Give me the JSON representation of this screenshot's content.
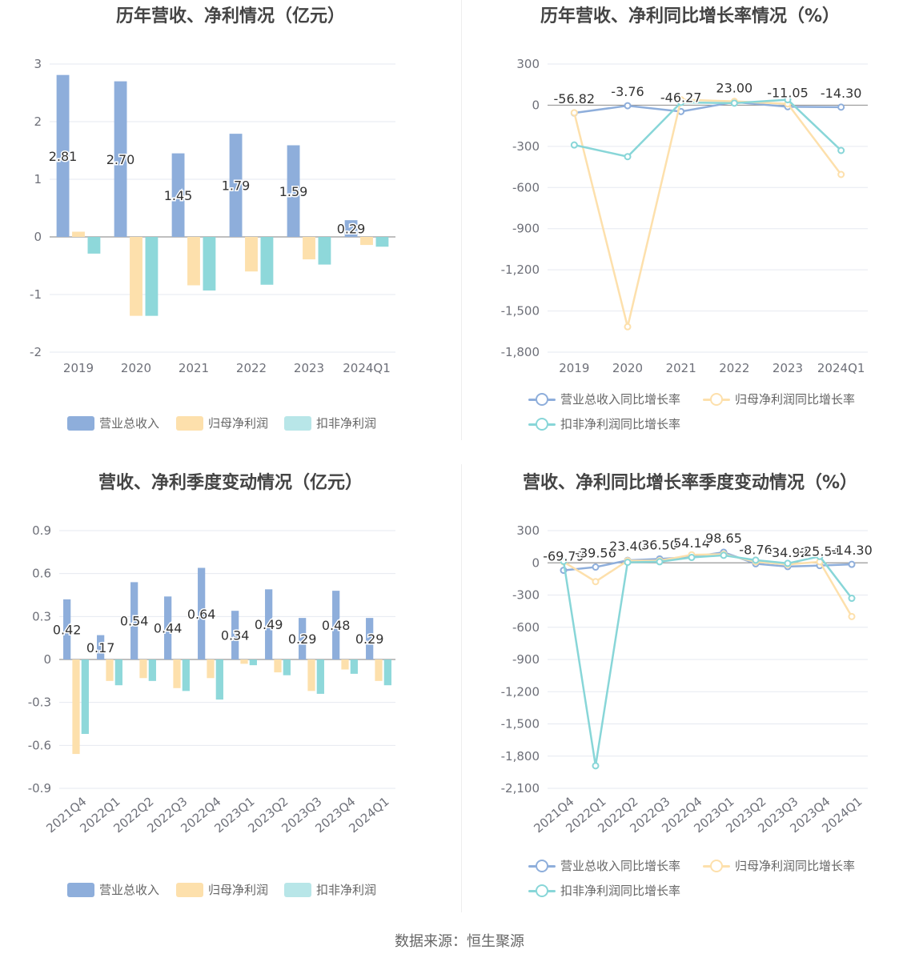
{
  "colors": {
    "revenue": "#8eaedb",
    "parent_profit": "#fde0ac",
    "deducted_profit": "#88d6d8",
    "grid": "#e6e9f0",
    "axis": "#6e7079",
    "zero": "#999999"
  },
  "source": "数据来源：恒生聚源",
  "chart_data": [
    {
      "type": "bar",
      "title": "历年营收、净利情况（亿元）",
      "categories": [
        "2019",
        "2020",
        "2021",
        "2022",
        "2023",
        "2024Q1"
      ],
      "ylim": [
        -2,
        3
      ],
      "yticks": [
        "3",
        "2",
        "1",
        "0",
        "-1",
        "-2"
      ],
      "ytick_values": [
        3,
        2,
        1,
        0,
        -1,
        -2
      ],
      "series": [
        {
          "name": "营业总收入",
          "values": [
            2.81,
            2.7,
            1.45,
            1.79,
            1.59,
            0.29
          ],
          "labels": [
            "2.81",
            "2.70",
            "1.45",
            "1.79",
            "1.59",
            "0.29"
          ]
        },
        {
          "name": "归母净利润",
          "values": [
            0.09,
            -1.37,
            -0.84,
            -0.6,
            -0.39,
            -0.14
          ]
        },
        {
          "name": "扣非净利润",
          "values": [
            -0.29,
            -1.37,
            -0.93,
            -0.83,
            -0.48,
            -0.17
          ]
        }
      ],
      "legend_position": "bottom"
    },
    {
      "type": "line",
      "title": "历年营收、净利同比增长率情况（%）",
      "categories": [
        "2019",
        "2020",
        "2021",
        "2022",
        "2023",
        "2024Q1"
      ],
      "ylim": [
        -1800,
        300
      ],
      "yticks": [
        "300",
        "0",
        "-300",
        "-600",
        "-900",
        "-1,200",
        "-1,500",
        "-1,800"
      ],
      "ytick_values": [
        300,
        0,
        -300,
        -600,
        -900,
        -1200,
        -1500,
        -1800
      ],
      "series": [
        {
          "name": "营业总收入同比增长率",
          "values": [
            -56.82,
            -3.76,
            -46.27,
            23.0,
            -11.05,
            -14.3
          ],
          "labels": [
            "-56.82",
            "-3.76",
            "-46.27",
            "23.00",
            "-11.05",
            "-14.30"
          ]
        },
        {
          "name": "归母净利润同比增长率",
          "values": [
            -55,
            -1615,
            40,
            28,
            10,
            -505
          ]
        },
        {
          "name": "扣非净利润同比增长率",
          "values": [
            -290,
            -375,
            20,
            15,
            40,
            -330
          ]
        }
      ],
      "legend_position": "bottom"
    },
    {
      "type": "bar",
      "title": "营收、净利季度变动情况（亿元）",
      "categories": [
        "2021Q4",
        "2022Q1",
        "2022Q2",
        "2022Q3",
        "2022Q4",
        "2023Q1",
        "2023Q2",
        "2023Q3",
        "2023Q4",
        "2024Q1"
      ],
      "ylim": [
        -0.9,
        0.9
      ],
      "yticks": [
        "0.9",
        "0.6",
        "0.3",
        "0",
        "-0.3",
        "-0.6",
        "-0.9"
      ],
      "ytick_values": [
        0.9,
        0.6,
        0.3,
        0,
        -0.3,
        -0.6,
        -0.9
      ],
      "series": [
        {
          "name": "营业总收入",
          "values": [
            0.42,
            0.17,
            0.54,
            0.44,
            0.64,
            0.34,
            0.49,
            0.29,
            0.48,
            0.29
          ],
          "labels": [
            "0.42",
            "0.17",
            "0.54",
            "0.44",
            "0.64",
            "0.34",
            "0.49",
            "0.29",
            "0.48",
            "0.29"
          ]
        },
        {
          "name": "归母净利润",
          "values": [
            -0.66,
            -0.15,
            -0.13,
            -0.2,
            -0.13,
            -0.03,
            -0.09,
            -0.22,
            -0.07,
            -0.15
          ]
        },
        {
          "name": "扣非净利润",
          "values": [
            -0.52,
            -0.18,
            -0.15,
            -0.22,
            -0.28,
            -0.04,
            -0.11,
            -0.24,
            -0.1,
            -0.18
          ]
        }
      ],
      "legend_position": "bottom"
    },
    {
      "type": "line",
      "title": "营收、净利同比增长率季度变动情况（%）",
      "categories": [
        "2021Q4",
        "2022Q1",
        "2022Q2",
        "2022Q3",
        "2022Q4",
        "2023Q1",
        "2023Q2",
        "2023Q3",
        "2023Q4",
        "2024Q1"
      ],
      "ylim": [
        -2100,
        300
      ],
      "yticks": [
        "300",
        "0",
        "-300",
        "-600",
        "-900",
        "-1,200",
        "-1,500",
        "-1,800",
        "-2,100"
      ],
      "ytick_values": [
        300,
        0,
        -300,
        -600,
        -900,
        -1200,
        -1500,
        -1800,
        -2100
      ],
      "series": [
        {
          "name": "营业总收入同比增长率",
          "values": [
            -69.79,
            -39.56,
            23.4,
            36.5,
            54.14,
            98.65,
            -8.76,
            -34.92,
            -25.54,
            -14.3
          ],
          "labels": [
            "-69.79",
            "-39.56",
            "23.40",
            "36.50",
            "54.14",
            "98.65",
            "-8.76",
            "-34.92",
            "-25.54",
            "-14.30"
          ]
        },
        {
          "name": "归母净利润同比增长率",
          "values": [
            10,
            -175,
            20,
            20,
            75,
            80,
            10,
            -15,
            10,
            -500
          ]
        },
        {
          "name": "扣非净利润同比增长率",
          "values": [
            15,
            -1890,
            5,
            10,
            50,
            70,
            25,
            -5,
            60,
            -330
          ]
        }
      ],
      "legend_position": "bottom"
    }
  ]
}
